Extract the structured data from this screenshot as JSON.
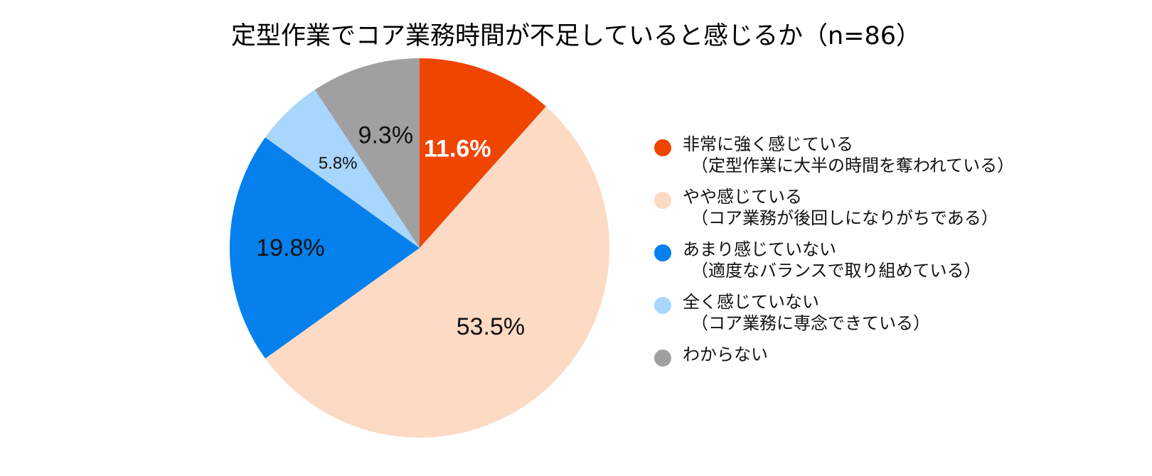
{
  "chart_data": {
    "type": "pie",
    "title": "定型作業でコア業務時間が不足していると感じるか（n=86）",
    "slices": [
      {
        "label": "非常に強く感じている",
        "sublabel": "（定型作業に大半の時間を奪われている）",
        "value": 11.6,
        "display": "11.6%",
        "color": "#EF4500",
        "label_color": "#FFFFFF",
        "label_weight": "bold"
      },
      {
        "label": "やや感じている",
        "sublabel": "（コア業務が後回しになりがちである）",
        "value": 53.5,
        "display": "53.5%",
        "color": "#FCDAC4",
        "label_color": "#111111",
        "label_weight": "normal"
      },
      {
        "label": "あまり感じていない",
        "sublabel": "（適度なバランスで取り組めている）",
        "value": 19.8,
        "display": "19.8%",
        "color": "#0580ED",
        "label_color": "#111111",
        "label_weight": "normal"
      },
      {
        "label": "全く感じていない",
        "sublabel": "（コア業務に専念できている）",
        "value": 5.8,
        "display": "5.8%",
        "color": "#A8D6FC",
        "label_color": "#111111",
        "label_weight": "normal"
      },
      {
        "label": "わからない",
        "sublabel": "",
        "value": 9.3,
        "display": "9.3%",
        "color": "#A0A0A0",
        "label_color": "#111111",
        "label_weight": "normal"
      }
    ],
    "legend_position": "right",
    "start_angle": "12 o'clock",
    "direction": "clockwise"
  }
}
